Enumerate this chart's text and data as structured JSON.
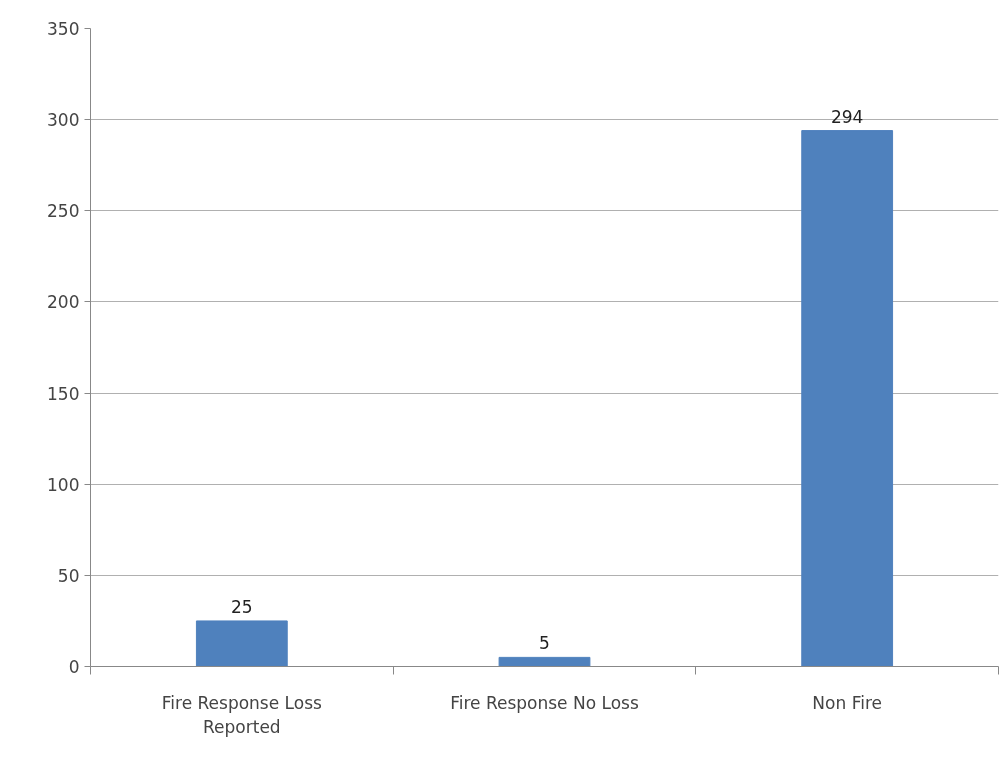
{
  "chart_data": {
    "type": "bar",
    "categories": [
      "Fire Response Loss Reported",
      "Fire Response No Loss",
      "Non Fire"
    ],
    "values": [
      25,
      5,
      294
    ],
    "color": "#4f81bd",
    "ylim": [
      0,
      350
    ],
    "yticks": [
      0,
      50,
      100,
      150,
      200,
      250,
      300,
      350
    ],
    "grid": "y",
    "data_labels": true
  }
}
